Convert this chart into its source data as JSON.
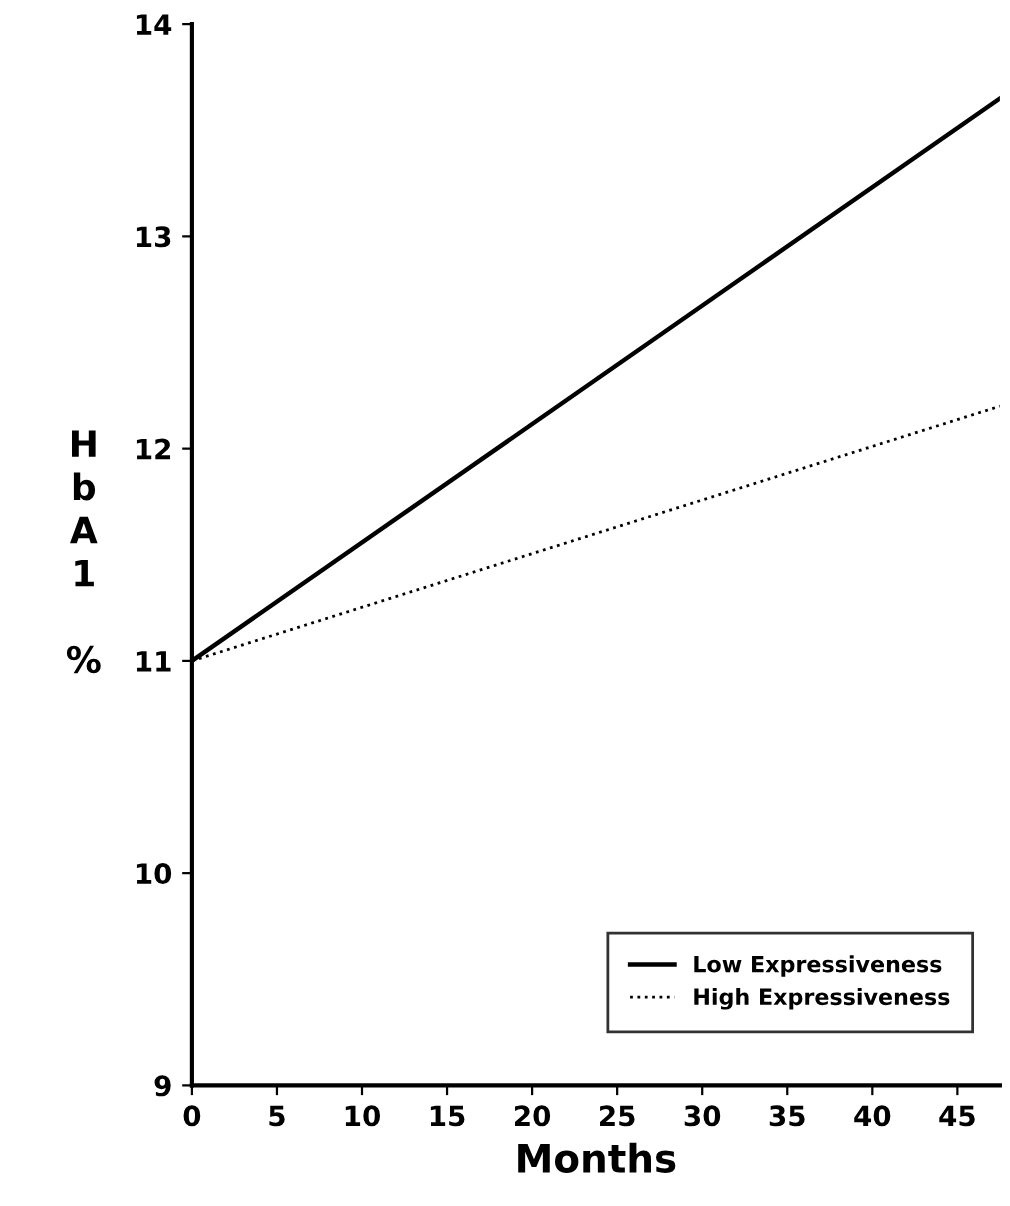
{
  "chart_data": {
    "type": "line",
    "xlabel": "Months",
    "ylabel": "HbA1 %",
    "x": [
      0,
      47.5
    ],
    "series": [
      {
        "name": "Low Expressiveness",
        "color": "#000000",
        "values": [
          11.0,
          13.65
        ],
        "line_style": "solid"
      },
      {
        "name": "High Expressiveness",
        "color": "#000000",
        "values": [
          11.0,
          12.2
        ],
        "line_style": "dotted"
      }
    ],
    "xlim": [
      0,
      47.5
    ],
    "xticks": [
      0,
      5,
      10,
      15,
      20,
      25,
      30,
      35,
      40,
      45
    ],
    "ylim": [
      9,
      14
    ],
    "yticks": [
      9,
      10,
      11,
      12,
      13,
      14
    ],
    "grid": false,
    "legend": "bottom right"
  }
}
